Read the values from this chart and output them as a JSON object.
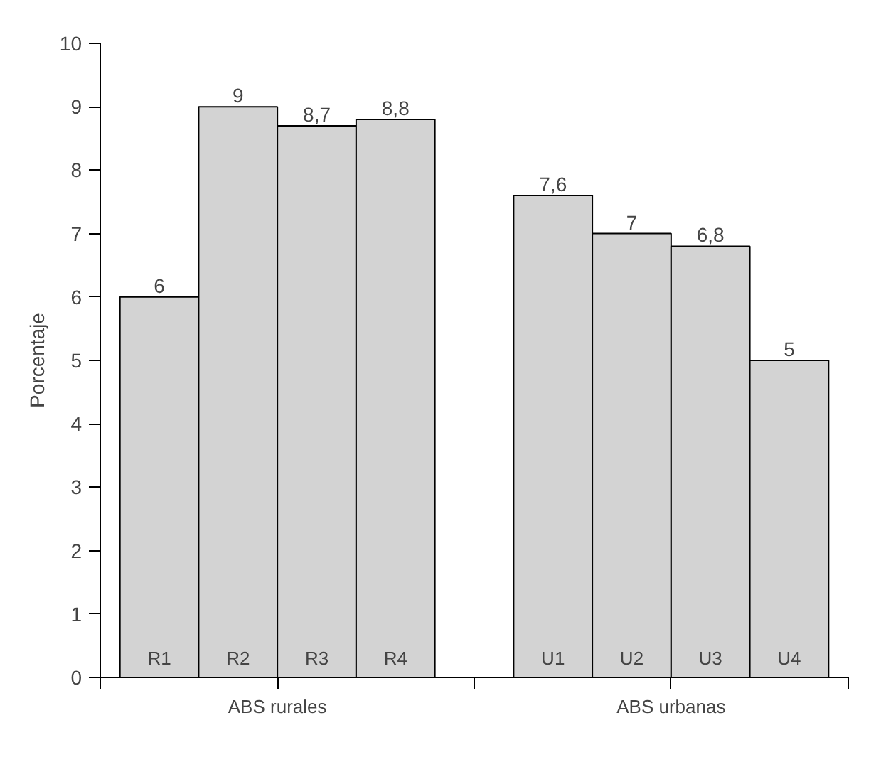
{
  "chart_data": {
    "type": "bar",
    "ylabel": "Porcentaje",
    "categories": [
      "R1",
      "R2",
      "R3",
      "R4",
      null,
      "U1",
      "U2",
      "U3",
      "U4"
    ],
    "values": [
      6,
      9,
      8.7,
      8.8,
      null,
      7.6,
      7,
      6.8,
      5
    ],
    "value_labels": [
      "6",
      "9",
      "8,7",
      "8,8",
      null,
      "7,6",
      "7",
      "6,8",
      "5"
    ],
    "color": "#d3d3d3",
    "ylim": [
      0,
      10
    ],
    "yticks": [
      0,
      1,
      2,
      3,
      4,
      5,
      6,
      7,
      8,
      9,
      10
    ],
    "annotations": [
      "ABS rurales",
      "ABS urbanas"
    ],
    "grid": false
  }
}
